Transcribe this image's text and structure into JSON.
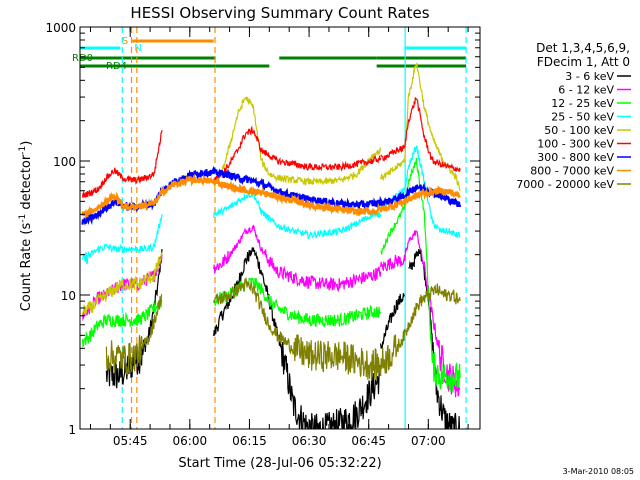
{
  "chart_data": {
    "type": "line",
    "title": "HESSI Observing Summary Count Rates",
    "xlabel": "Start Time (28-Jul-06 05:32:22)",
    "ylabel_main": "Count Rate (s",
    "ylabel_sup1": "-1",
    "ylabel_mid": " detector",
    "ylabel_sup2": "-1",
    "ylabel_end": ")",
    "y_scale": "log",
    "ylim": [
      1,
      1000
    ],
    "xlim": [
      "05:32:22",
      "07:13:00"
    ],
    "y_ticks": [
      "1",
      "10",
      "100",
      "1000"
    ],
    "x_ticks": [
      "05:45",
      "06:00",
      "06:15",
      "06:30",
      "06:45",
      "07:00"
    ],
    "legend": {
      "header_lines": [
        "Det 1,3,4,5,6,9,",
        "FDecim 1, Att 0"
      ],
      "placement": "right"
    },
    "flag_labels": {
      "s": "S",
      "n": "N",
      "rd0": "RD0",
      "rd4": "RD4"
    },
    "flags": {
      "s_color": "#ff8c00",
      "n_color": "#00ffff",
      "rd_color": "#008000",
      "s_intervals": [
        [
          "05:45:30",
          "06:06:00"
        ]
      ],
      "n_intervals": [
        [
          "05:32:22",
          "05:42:30"
        ],
        [
          "06:54:00",
          "07:09:30"
        ]
      ],
      "rd0_intervals": [
        [
          "05:32:22",
          "06:06:30"
        ],
        [
          "06:06:30",
          "06:20:00"
        ],
        [
          "06:22:30",
          "06:47:00"
        ],
        [
          "06:47:00",
          "07:09:30"
        ]
      ],
      "rd4_intervals": [
        [
          "05:32:22",
          "06:06:30"
        ],
        [
          "06:47:00",
          "07:09:30"
        ]
      ]
    },
    "vlines": [
      {
        "time": "05:43:00",
        "color": "#00ffff",
        "style": "dashed"
      },
      {
        "time": "05:45:20",
        "color": "#ff8c00",
        "style": "dashed"
      },
      {
        "time": "05:46:40",
        "color": "#ff8c00",
        "style": "dashed"
      },
      {
        "time": "06:06:20",
        "color": "#ff8c00",
        "style": "dashed"
      },
      {
        "time": "06:54:10",
        "color": "#00ffff",
        "style": "solid"
      },
      {
        "time": "07:09:30",
        "color": "#00ffff",
        "style": "dashed"
      }
    ],
    "series": [
      {
        "name": "3 - 6 keV",
        "color": "#000000",
        "segments": [
          {
            "t": [
              "05:39",
              "05:42",
              "05:44",
              "05:46",
              "05:48",
              "05:50",
              "05:52",
              "05:53"
            ],
            "v": [
              2.5,
              2.5,
              2.7,
              3.2,
              3.5,
              5.5,
              12,
              22
            ]
          },
          {
            "t": [
              "06:06",
              "06:08",
              "06:10",
              "06:12",
              "06:14",
              "06:16",
              "06:18",
              "06:20",
              "06:22",
              "06:24",
              "06:26",
              "06:28",
              "06:30",
              "06:34",
              "06:38",
              "06:42",
              "06:46",
              "06:48"
            ],
            "v": [
              5,
              7,
              9,
              12,
              18,
              22,
              15,
              9,
              5,
              3,
              1.5,
              1.2,
              1.0,
              1.0,
              1.1,
              1.3,
              2,
              2.5
            ]
          },
          {
            "t": [
              "06:48",
              "06:50",
              "06:52",
              "06:54"
            ],
            "v": [
              4,
              6,
              8.5,
              10
            ]
          },
          {
            "t": [
              "06:55",
              "06:58",
              "07:00",
              "07:02",
              "07:04",
              "07:06",
              "07:08"
            ],
            "v": [
              15,
              22,
              10,
              2,
              1.2,
              1.0,
              1.0
            ]
          }
        ]
      },
      {
        "name": "6 - 12 keV",
        "color": "#ff00ff",
        "segments": [
          {
            "t": [
              "05:33",
              "05:35",
              "05:37",
              "05:39",
              "05:41",
              "05:43",
              "05:45",
              "05:47",
              "05:49",
              "05:51",
              "05:53"
            ],
            "v": [
              7,
              8,
              9.5,
              10,
              11,
              12,
              12,
              12,
              13,
              14,
              20
            ]
          },
          {
            "t": [
              "06:06",
              "06:08",
              "06:10",
              "06:12",
              "06:14",
              "06:16",
              "06:18",
              "06:20",
              "06:22",
              "06:26",
              "06:30",
              "06:34",
              "06:38",
              "06:42",
              "06:46",
              "06:48"
            ],
            "v": [
              16,
              17,
              20,
              24,
              30,
              32,
              22,
              18,
              15,
              13.5,
              12.5,
              12,
              12,
              13,
              14,
              15
            ]
          },
          {
            "t": [
              "06:48",
              "06:50",
              "06:52",
              "06:54",
              "06:55",
              "06:57",
              "06:59",
              "07:01",
              "07:03",
              "07:05",
              "07:07",
              "07:08"
            ],
            "v": [
              16,
              17,
              18,
              18,
              25,
              30,
              16,
              7,
              3.5,
              2.5,
              2.2,
              2.0
            ]
          }
        ]
      },
      {
        "name": "12 - 25 keV",
        "color": "#00ff00",
        "segments": [
          {
            "t": [
              "05:33",
              "05:35",
              "05:37",
              "05:39",
              "05:41",
              "05:43",
              "05:45",
              "05:47",
              "05:49",
              "05:51",
              "05:53"
            ],
            "v": [
              4.5,
              5,
              6,
              6.5,
              6.5,
              6.5,
              6.5,
              6.5,
              7,
              8,
              9
            ]
          },
          {
            "t": [
              "06:06",
              "06:08",
              "06:10",
              "06:12",
              "06:14",
              "06:16",
              "06:18",
              "06:20",
              "06:22",
              "06:26",
              "06:30",
              "06:34",
              "06:38",
              "06:42",
              "06:46",
              "06:48"
            ],
            "v": [
              9,
              9.5,
              10,
              11,
              12,
              12.5,
              11,
              9,
              8,
              7,
              6.5,
              6.5,
              6.5,
              7,
              7.5,
              7.5
            ]
          },
          {
            "t": [
              "06:48",
              "06:50",
              "06:52",
              "06:54",
              "06:55",
              "06:57",
              "06:59",
              "07:01",
              "07:03",
              "07:05",
              "07:07",
              "07:08"
            ],
            "v": [
              20,
              28,
              35,
              45,
              70,
              100,
              40,
              3,
              2.5,
              2.5,
              2.4,
              2.4
            ]
          }
        ]
      },
      {
        "name": "25 - 50 keV",
        "color": "#00ffff",
        "segments": [
          {
            "t": [
              "05:33",
              "05:35",
              "05:37",
              "05:39",
              "05:41",
              "05:43",
              "05:45",
              "05:47",
              "05:49",
              "05:51",
              "05:53"
            ],
            "v": [
              18,
              20,
              22,
              23,
              22,
              22,
              22,
              22,
              22,
              23,
              40
            ]
          },
          {
            "t": [
              "06:06",
              "06:08",
              "06:10",
              "06:12",
              "06:14",
              "06:16",
              "06:18",
              "06:20",
              "06:22",
              "06:26",
              "06:30",
              "06:34",
              "06:38",
              "06:42",
              "06:46",
              "06:48"
            ],
            "v": [
              40,
              42,
              45,
              50,
              55,
              57,
              42,
              37,
              33,
              30,
              28,
              29,
              30,
              34,
              40,
              40
            ]
          },
          {
            "t": [
              "06:48",
              "06:50",
              "06:52",
              "06:54",
              "06:55",
              "06:57",
              "06:59",
              "07:01",
              "07:03",
              "07:05",
              "07:07",
              "07:08"
            ],
            "v": [
              45,
              50,
              55,
              60,
              90,
              130,
              70,
              35,
              30,
              30,
              28,
              28
            ]
          }
        ]
      },
      {
        "name": "50 - 100 keV",
        "color": "#c8c800",
        "segments": [
          {
            "t": [
              "05:33",
              "05:35",
              "05:37",
              "05:39",
              "05:41",
              "05:43",
              "05:45",
              "05:47",
              "05:49",
              "05:51",
              "05:53"
            ],
            "v": [
              7.5,
              8,
              9,
              10,
              11,
              12,
              12,
              12,
              13,
              14,
              20
            ]
          },
          {
            "t": [
              "06:06",
              "06:08",
              "06:10",
              "06:12",
              "06:14",
              "06:16",
              "06:18",
              "06:20",
              "06:22",
              "06:26",
              "06:30",
              "06:34",
              "06:38",
              "06:42",
              "06:46",
              "06:48"
            ],
            "v": [
              65,
              80,
              130,
              220,
              300,
              250,
              100,
              80,
              75,
              72,
              70,
              70,
              72,
              80,
              110,
              120
            ]
          },
          {
            "t": [
              "06:48",
              "06:50",
              "06:52",
              "06:54",
              "06:55",
              "06:57",
              "06:59",
              "07:01",
              "07:03",
              "07:05",
              "07:07",
              "07:08"
            ],
            "v": [
              75,
              80,
              90,
              100,
              300,
              550,
              250,
              150,
              110,
              90,
              75,
              60
            ]
          }
        ]
      },
      {
        "name": "100 - 300 keV",
        "color": "#ff0000",
        "segments": [
          {
            "t": [
              "05:33",
              "05:35",
              "05:37",
              "05:39",
              "05:41",
              "05:43",
              "05:45",
              "05:47",
              "05:49",
              "05:51",
              "05:53"
            ],
            "v": [
              55,
              58,
              62,
              75,
              85,
              75,
              72,
              72,
              75,
              80,
              170
            ]
          },
          {
            "t": [
              "06:06",
              "06:08",
              "06:10",
              "06:12",
              "06:14",
              "06:16",
              "06:18",
              "06:20",
              "06:22",
              "06:26",
              "06:30",
              "06:34",
              "06:38",
              "06:42",
              "06:46",
              "06:48"
            ],
            "v": [
              75,
              80,
              95,
              120,
              160,
              170,
              120,
              110,
              100,
              95,
              90,
              90,
              90,
              95,
              100,
              105
            ]
          },
          {
            "t": [
              "06:48",
              "06:50",
              "06:52",
              "06:54",
              "06:55",
              "06:57",
              "06:59",
              "07:01",
              "07:03",
              "07:05",
              "07:07",
              "07:08"
            ],
            "v": [
              105,
              110,
              120,
              125,
              200,
              300,
              150,
              100,
              95,
              90,
              88,
              85
            ]
          }
        ]
      },
      {
        "name": "300 - 800 keV",
        "color": "#0000ff",
        "segments": [
          {
            "t": [
              "05:33",
              "05:35",
              "05:37",
              "05:39",
              "05:41",
              "05:43",
              "05:45",
              "05:47",
              "05:49",
              "05:51",
              "05:53",
              "05:56",
              "06:00",
              "06:03",
              "06:06",
              "06:09",
              "06:12",
              "06:15",
              "06:18",
              "06:21",
              "06:24",
              "06:27",
              "06:30",
              "06:34",
              "06:38",
              "06:42",
              "06:46",
              "06:50",
              "06:54",
              "06:57",
              "07:00",
              "07:03",
              "07:06",
              "07:08"
            ],
            "v": [
              35,
              37,
              40,
              45,
              50,
              47,
              45,
              46,
              47,
              48,
              60,
              70,
              78,
              82,
              82,
              80,
              75,
              72,
              68,
              62,
              57,
              54,
              52,
              50,
              48,
              47,
              48,
              50,
              55,
              65,
              60,
              55,
              50,
              47
            ]
          }
        ]
      },
      {
        "name": "800 - 7000 keV",
        "color": "#ff8c00",
        "segments": [
          {
            "t": [
              "05:33",
              "05:35",
              "05:37",
              "05:39",
              "05:41",
              "05:43",
              "05:45",
              "05:47",
              "05:49",
              "05:51",
              "05:53",
              "05:56",
              "06:00",
              "06:03",
              "06:06",
              "06:09",
              "06:12",
              "06:15",
              "06:18",
              "06:21",
              "06:24",
              "06:27",
              "06:30",
              "06:34",
              "06:38",
              "06:42",
              "06:46",
              "06:50",
              "06:54",
              "06:57",
              "07:00",
              "07:03",
              "07:06",
              "07:08"
            ],
            "v": [
              40,
              42,
              45,
              50,
              55,
              47,
              45,
              46,
              47,
              48,
              58,
              67,
              72,
              72,
              70,
              66,
              62,
              60,
              58,
              55,
              52,
              50,
              47,
              45,
              43,
              42,
              42,
              45,
              50,
              55,
              58,
              60,
              58,
              55
            ]
          }
        ]
      },
      {
        "name": "7000 - 20000 keV",
        "color": "#808000",
        "segments": [
          {
            "t": [
              "05:39",
              "05:42",
              "05:44",
              "05:46",
              "05:48",
              "05:50",
              "05:52",
              "05:53"
            ],
            "v": [
              3.5,
              3.5,
              3.3,
              3.5,
              4,
              5,
              8,
              10
            ]
          },
          {
            "t": [
              "06:06",
              "06:08",
              "06:10",
              "06:12",
              "06:14",
              "06:16",
              "06:18",
              "06:20",
              "06:22",
              "06:26",
              "06:30",
              "06:34",
              "06:38",
              "06:42",
              "06:46",
              "06:48"
            ],
            "v": [
              9,
              9.5,
              10,
              11,
              12,
              11,
              8,
              6,
              5,
              4,
              3.5,
              3.5,
              3.5,
              3.2,
              3,
              3
            ]
          },
          {
            "t": [
              "06:48",
              "06:50",
              "06:52",
              "06:54",
              "06:56",
              "06:58",
              "07:00",
              "07:02",
              "07:04",
              "07:06",
              "07:08"
            ],
            "v": [
              3,
              3.5,
              4,
              5,
              7,
              9,
              10,
              11,
              10,
              10,
              9
            ]
          }
        ]
      }
    ]
  },
  "footer": {
    "timestamp": "3-Mar-2010 08:05"
  }
}
